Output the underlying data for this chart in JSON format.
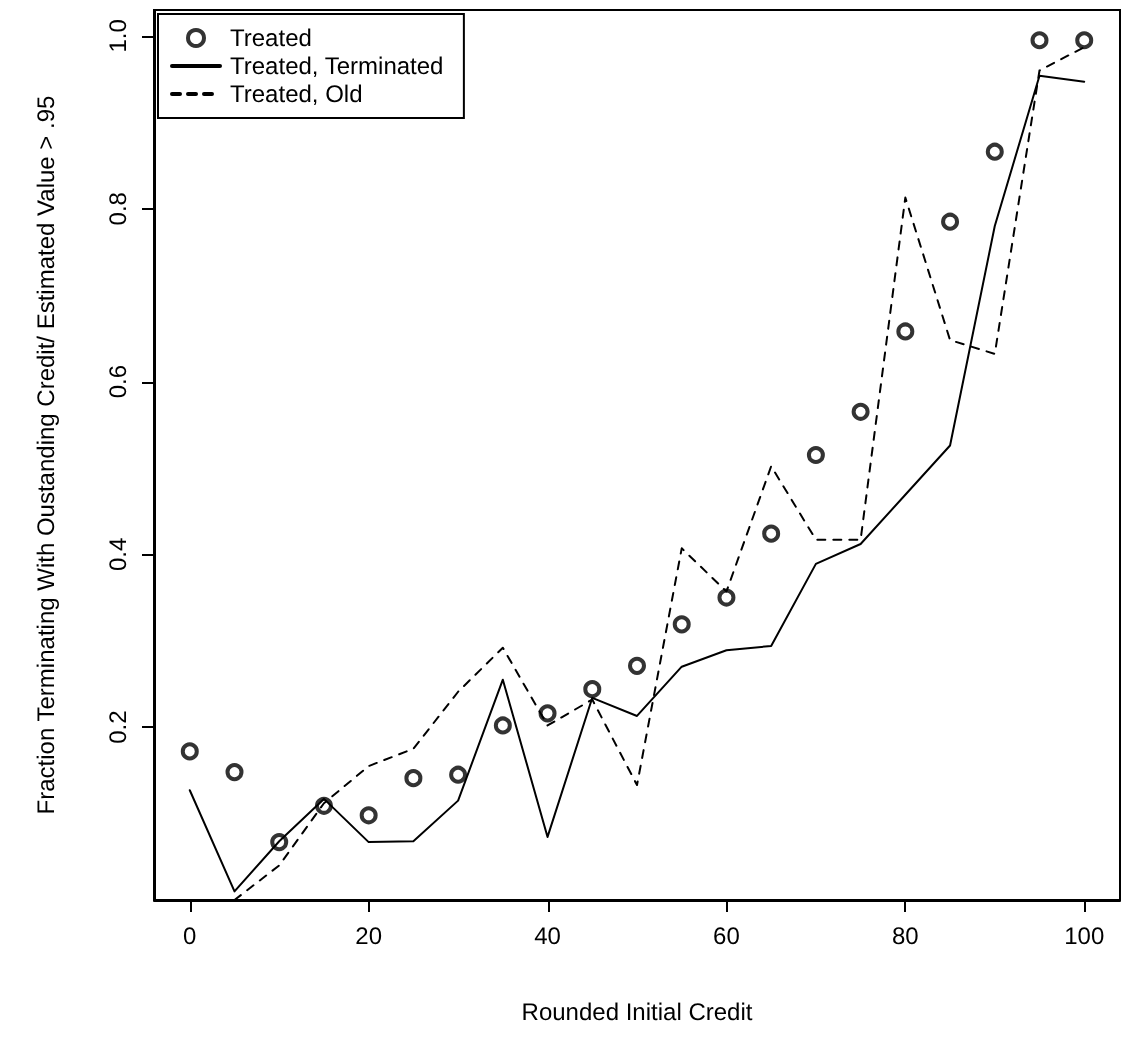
{
  "chart_data": {
    "type": "line",
    "xlabel": "Rounded Initial Credit",
    "ylabel": "Fraction Terminating With Oustanding Credit/ Estimated Value > .95",
    "x": [
      0,
      5,
      10,
      15,
      20,
      25,
      30,
      35,
      40,
      45,
      50,
      55,
      60,
      65,
      70,
      75,
      80,
      85,
      90,
      95,
      100
    ],
    "xlim": [
      -4,
      104
    ],
    "ylim": [
      0,
      1.03
    ],
    "xticks": [
      0,
      20,
      40,
      60,
      80,
      100
    ],
    "yticks": [
      0.2,
      0.4,
      0.6,
      0.8,
      {
        "value": 1,
        "label": "1.0"
      }
    ],
    "legend": "top left",
    "series": [
      {
        "name": "Treated",
        "type": "scatter",
        "marker": "circle",
        "color": "#000000",
        "values": [
          0.172,
          0.148,
          0.067,
          0.109,
          0.098,
          0.141,
          0.145,
          0.202,
          0.216,
          0.244,
          0.271,
          0.319,
          0.35,
          0.424,
          0.515,
          0.565,
          0.658,
          0.785,
          0.866,
          0.995,
          0.995
        ]
      },
      {
        "name": "Treated, Terminated",
        "type": "line",
        "marker": "none",
        "line_style": "solid",
        "color": "#000000",
        "values": [
          0.127,
          0.01,
          0.068,
          0.117,
          0.067,
          0.068,
          0.115,
          0.255,
          0.073,
          0.234,
          0.213,
          0.27,
          0.289,
          0.294,
          0.389,
          0.412,
          0.469,
          0.526,
          0.78,
          0.954,
          0.947
        ]
      },
      {
        "name": "Treated, Old",
        "type": "line",
        "marker": "none",
        "line_style": "dashed",
        "color": "#000000",
        "values": [
          null,
          0.0,
          0.04,
          0.112,
          0.155,
          0.175,
          0.241,
          0.292,
          0.202,
          0.232,
          0.133,
          0.407,
          0.357,
          0.502,
          0.417,
          0.417,
          0.813,
          0.648,
          0.632,
          0.96,
          0.987
        ]
      }
    ]
  }
}
